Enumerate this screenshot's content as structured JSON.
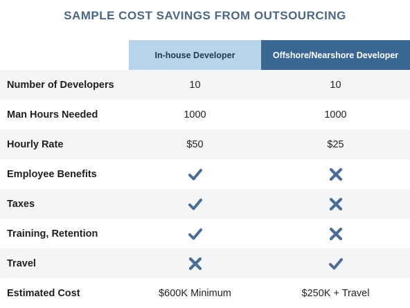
{
  "title": "SAMPLE COST SAVINGS FROM OUTSOURCING",
  "columns": {
    "label": "",
    "inhouse": "In-house Developer",
    "offshore": "Offshore/Nearshore Developer"
  },
  "colors": {
    "title": "#4a6785",
    "inhouse_header": "#b8d4ea",
    "offshore_header": "#3a6694",
    "icon": "#4a6d96"
  },
  "rows": [
    {
      "label": "Number of Developers",
      "inhouse": "10",
      "offshore": "10"
    },
    {
      "label": "Man Hours Needed",
      "inhouse": "1000",
      "offshore": "1000"
    },
    {
      "label": "Hourly Rate",
      "inhouse": "$50",
      "offshore": "$25"
    },
    {
      "label": "Employee Benefits",
      "inhouse": "check-icon",
      "offshore": "cross-icon"
    },
    {
      "label": "Taxes",
      "inhouse": "check-icon",
      "offshore": "cross-icon"
    },
    {
      "label": "Training, Retention",
      "inhouse": "check-icon",
      "offshore": "cross-icon"
    },
    {
      "label": "Travel",
      "inhouse": "cross-icon",
      "offshore": "check-icon"
    },
    {
      "label": "Estimated Cost",
      "inhouse": "$600K Minimum",
      "offshore": "$250K + Travel"
    }
  ]
}
